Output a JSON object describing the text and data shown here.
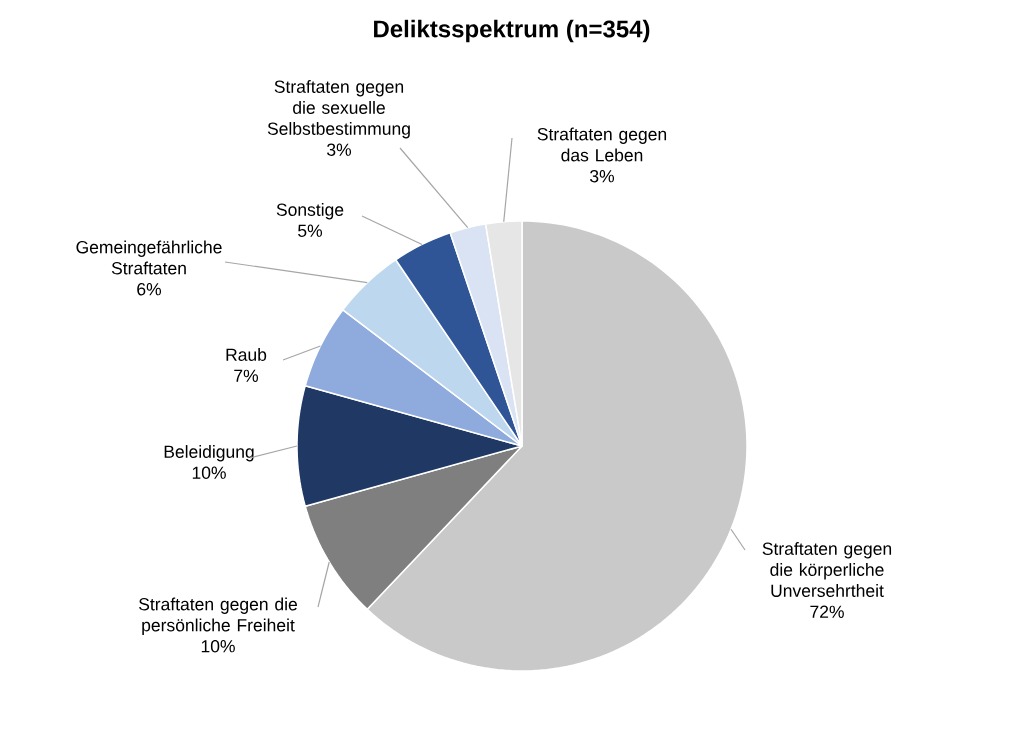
{
  "chart_data": {
    "type": "pie",
    "title": "Deliktsspektrum (n=354)",
    "categories": [
      "Straftaten gegen die körperliche Unversehrtheit",
      "Straftaten gegen die persönliche Freiheit",
      "Beleidigung",
      "Raub",
      "Gemeingefährliche Straftaten",
      "Sonstige",
      "Straftaten gegen die sexuelle Selbstbestimmung",
      "Straftaten gegen das Leben"
    ],
    "values": [
      72,
      10,
      10,
      7,
      6,
      5,
      3,
      3
    ],
    "value_labels": [
      "72%",
      "10%",
      "10%",
      "7%",
      "6%",
      "5%",
      "3%",
      "3%"
    ],
    "colors": [
      "#c9c9c9",
      "#7f7f7f",
      "#203864",
      "#8faadc",
      "#bdd7ee",
      "#2f5597",
      "#dae3f3",
      "#e7e6e6"
    ]
  }
}
